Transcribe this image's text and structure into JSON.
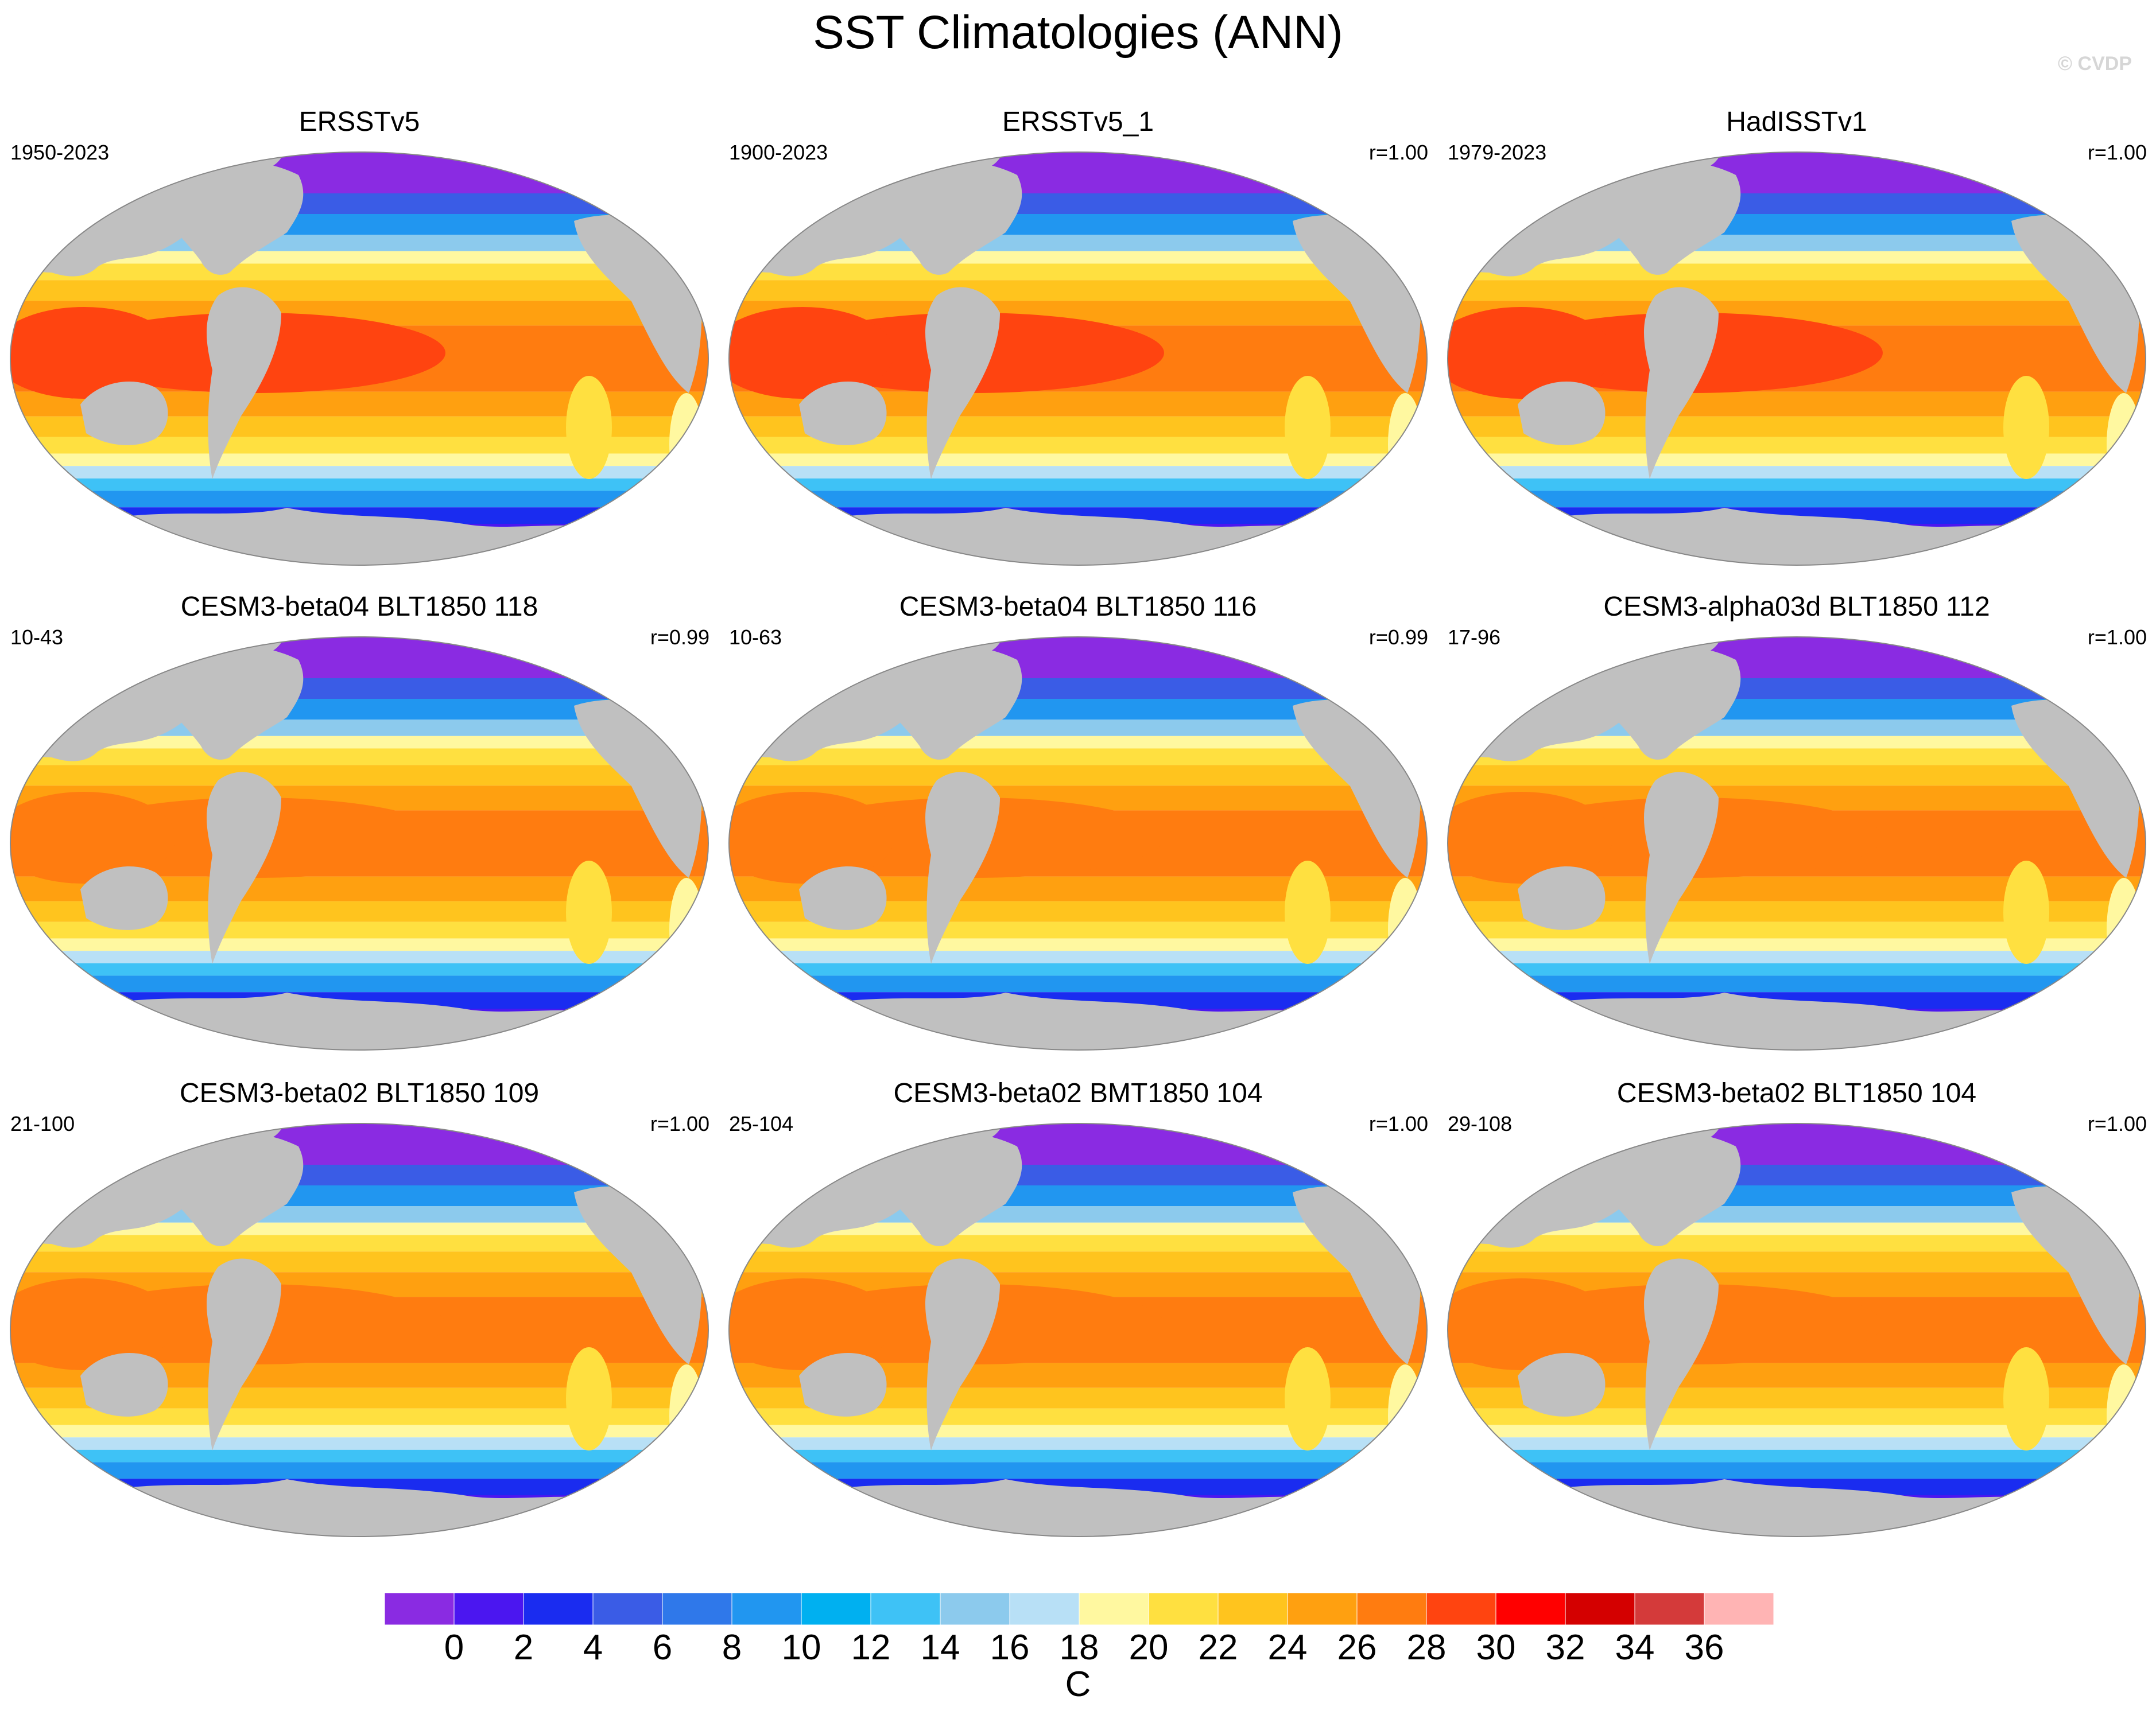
{
  "title": "SST Climatologies (ANN)",
  "copyright": "© CVDP",
  "panels": [
    {
      "title": "ERSSTv5",
      "years": "1950-2023",
      "corr": "",
      "variant": "obs"
    },
    {
      "title": "ERSSTv5_1",
      "years": "1900-2023",
      "corr": "r=1.00",
      "variant": "obs"
    },
    {
      "title": "HadISSTv1",
      "years": "1979-2023",
      "corr": "r=1.00",
      "variant": "had"
    },
    {
      "title": "CESM3-beta04 BLT1850 118",
      "years": "10-43",
      "corr": "r=0.99",
      "variant": "model"
    },
    {
      "title": "CESM3-beta04 BLT1850 116",
      "years": "10-63",
      "corr": "r=0.99",
      "variant": "model"
    },
    {
      "title": "CESM3-alpha03d BLT1850 112",
      "years": "17-96",
      "corr": "r=1.00",
      "variant": "model"
    },
    {
      "title": "CESM3-beta02 BLT1850 109",
      "years": "21-100",
      "corr": "r=1.00",
      "variant": "model"
    },
    {
      "title": "CESM3-beta02 BMT1850 104",
      "years": "25-104",
      "corr": "r=1.00",
      "variant": "model"
    },
    {
      "title": "CESM3-beta02 BLT1850 104",
      "years": "29-108",
      "corr": "r=1.00",
      "variant": "model"
    }
  ],
  "colorbar": {
    "unit": "C",
    "labels": [
      "0",
      "2",
      "4",
      "6",
      "8",
      "10",
      "12",
      "14",
      "16",
      "18",
      "20",
      "22",
      "24",
      "26",
      "28",
      "30",
      "32",
      "34",
      "36"
    ],
    "colors": [
      "#8a2be2",
      "#4b16f0",
      "#1a2cf0",
      "#3a5ce6",
      "#2f78ea",
      "#2196f0",
      "#00b0f0",
      "#3ec2f6",
      "#8ccaed",
      "#b8e0f6",
      "#fff8a0",
      "#ffe040",
      "#ffc41e",
      "#ffa010",
      "#ff7c10",
      "#ff4410",
      "#ff0000",
      "#d40000",
      "#d43a3a",
      "#ffb4b4"
    ]
  },
  "land_color": "#c0c0c0",
  "ocean_outline_color": "#c0c0c0"
}
